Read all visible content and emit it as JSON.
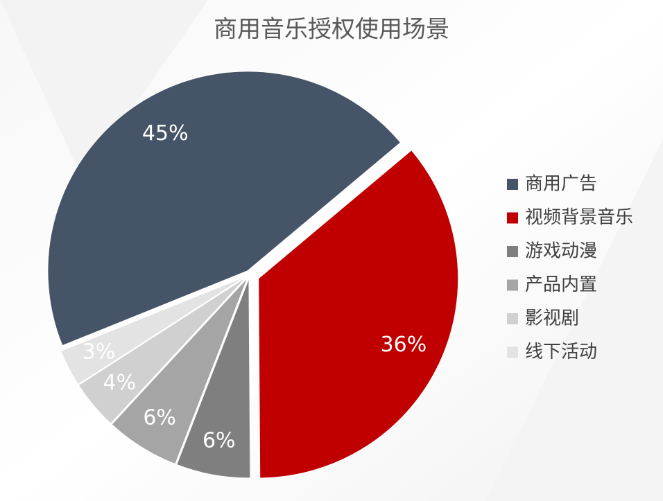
{
  "chart_data": {
    "type": "pie",
    "title": "商用音乐授权使用场景",
    "categories": [
      "商用广告",
      "视频背景音乐",
      "游戏动漫",
      "产品内置",
      "影视剧",
      "线下活动"
    ],
    "values": [
      45,
      36,
      6,
      6,
      4,
      3
    ],
    "value_labels": [
      "45%",
      "36%",
      "6%",
      "6%",
      "4%",
      "3%"
    ],
    "colors": [
      "#465467",
      "#c00000",
      "#7f7f7f",
      "#a5a5a5",
      "#d0d0d0",
      "#e3e3e3"
    ],
    "legend": "right"
  }
}
